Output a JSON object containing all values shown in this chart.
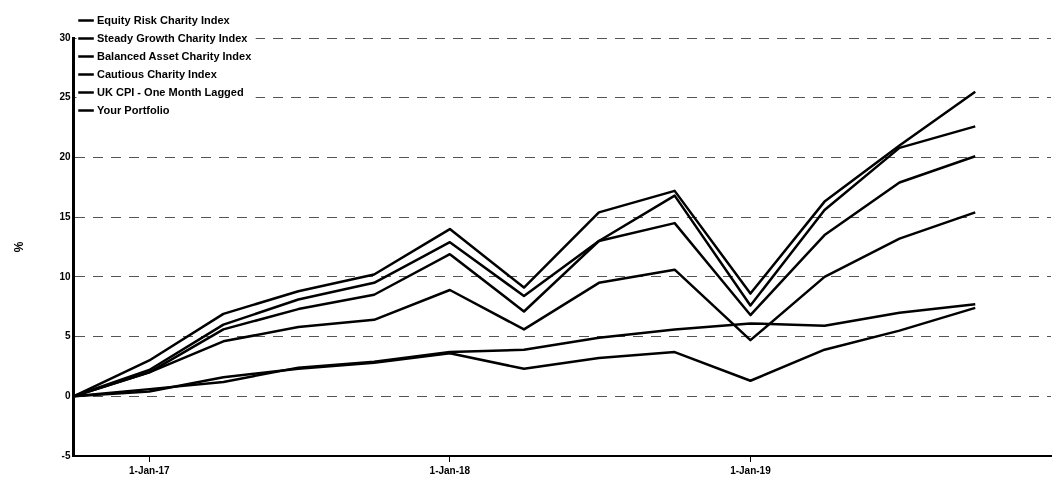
{
  "chart_data": {
    "type": "line",
    "ylabel": "%",
    "x": [
      "2016-10",
      "2017-01",
      "2017-04",
      "2017-07",
      "2017-10",
      "2018-01",
      "2018-04",
      "2018-07",
      "2018-10",
      "2019-01",
      "2019-04",
      "2019-07",
      "2019-10"
    ],
    "xlim": [
      "2016-10",
      "2020-01"
    ],
    "xticks": [
      {
        "value": "2017-01",
        "label": "1-Jan-17"
      },
      {
        "value": "2018-01",
        "label": "1-Jan-18"
      },
      {
        "value": "2019-01",
        "label": "1-Jan-19"
      }
    ],
    "ylim": [
      -5,
      30
    ],
    "yticks": [
      -5,
      0,
      5,
      10,
      15,
      20,
      25,
      30
    ],
    "grid": "y",
    "legend": "top left",
    "marker": "none",
    "line_style": "solid",
    "series": [
      {
        "name": "Equity Risk Charity Index",
        "color": "#000000",
        "values": [
          0,
          3.0,
          6.9,
          8.8,
          10.2,
          14.0,
          9.1,
          15.4,
          17.2,
          8.6,
          16.3,
          21.0,
          25.5
        ]
      },
      {
        "name": "Steady Growth Charity Index",
        "color": "#000000",
        "values": [
          0,
          2.2,
          6.0,
          8.1,
          9.5,
          12.9,
          8.4,
          13.0,
          16.8,
          7.6,
          15.6,
          20.8,
          22.6
        ]
      },
      {
        "name": "Balanced Asset Charity Index",
        "color": "#000000",
        "values": [
          0,
          2.0,
          5.6,
          7.3,
          8.5,
          11.9,
          7.1,
          13.0,
          14.5,
          6.8,
          13.5,
          17.9,
          20.1
        ]
      },
      {
        "name": "Cautious Charity Index",
        "color": "#000000",
        "values": [
          0,
          2.0,
          4.6,
          5.8,
          6.4,
          8.9,
          5.6,
          9.5,
          10.6,
          4.7,
          10.0,
          13.2,
          15.4
        ]
      },
      {
        "name": "UK CPI - One Month Lagged",
        "color": "#000000",
        "values": [
          0,
          0.6,
          1.2,
          2.4,
          2.9,
          3.7,
          3.9,
          4.9,
          5.6,
          6.1,
          5.9,
          7.0,
          7.7
        ]
      },
      {
        "name": "Your Portfolio",
        "color": "#000000",
        "values": [
          0,
          0.4,
          1.6,
          2.3,
          2.8,
          3.6,
          2.3,
          3.2,
          3.7,
          1.3,
          3.9,
          5.5,
          7.4
        ]
      }
    ]
  }
}
